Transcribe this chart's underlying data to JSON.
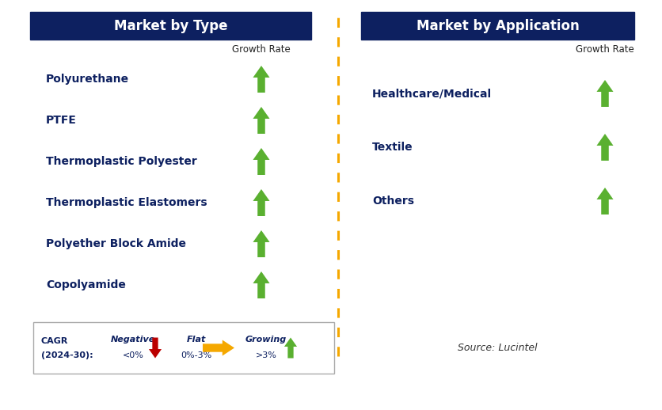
{
  "title_left": "Market by Type",
  "title_right": "Market by Application",
  "header_bg_color": "#0d2060",
  "header_text_color": "#ffffff",
  "left_items": [
    "Polyurethane",
    "PTFE",
    "Thermoplastic Polyester",
    "Thermoplastic Elastomers",
    "Polyether Block Amide",
    "Copolyamide"
  ],
  "right_items": [
    "Healthcare/Medical",
    "Textile",
    "Others"
  ],
  "item_text_color": "#0d2060",
  "growth_rate_label": "Growth Rate",
  "growth_rate_color": "#222222",
  "arrow_up_color": "#5ab030",
  "arrow_down_color": "#bb0000",
  "arrow_flat_color": "#f5a800",
  "divider_color": "#f5a800",
  "legend_cagr_line1": "CAGR",
  "legend_cagr_line2": "(2024-30):",
  "legend_negative_label": "Negative",
  "legend_negative_range": "<0%",
  "legend_flat_label": "Flat",
  "legend_flat_range": "0%-3%",
  "legend_growing_label": "Growing",
  "legend_growing_range": ">3%",
  "source_text": "Source: Lucintel",
  "bg_color": "#ffffff",
  "border_color": "#aaaaaa"
}
